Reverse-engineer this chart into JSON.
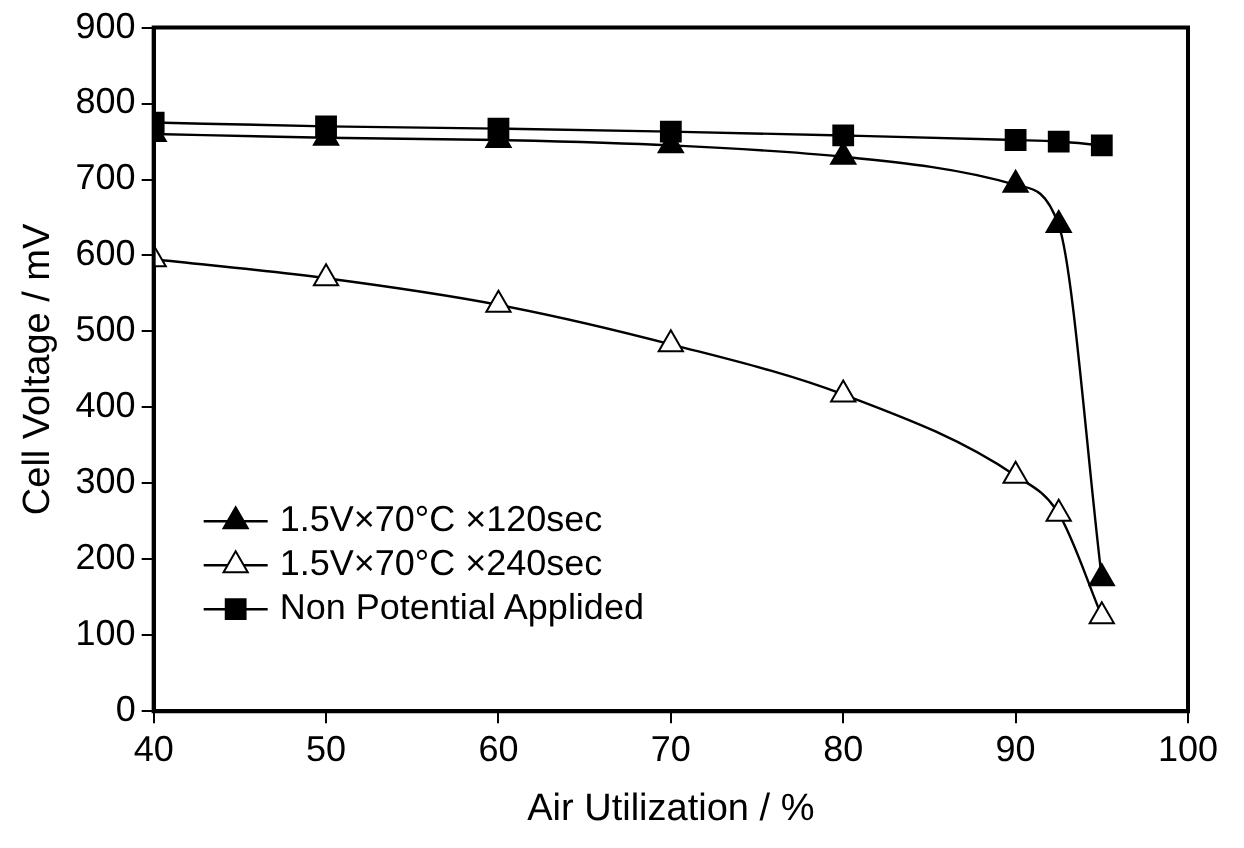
{
  "chart_data": {
    "type": "line",
    "xlabel": "Air Utilization / %",
    "ylabel": "Cell Voltage / mV",
    "x": [
      40,
      50,
      60,
      70,
      80,
      90,
      92.5,
      95
    ],
    "series": [
      {
        "name": "1.5V×70°C ×120sec",
        "color": "#000000",
        "marker": "triangle",
        "values": [
          760,
          755,
          752,
          745,
          730,
          693,
          640,
          175
        ]
      },
      {
        "name": "1.5V×70°C ×240sec",
        "color": "#ffffff",
        "marker": "triangle",
        "values": [
          595,
          570,
          535,
          483,
          417,
          310,
          260,
          125
        ]
      },
      {
        "name": "Non Potential Applided",
        "color": "#000000",
        "marker": "square",
        "values": [
          775,
          770,
          767,
          763,
          758,
          752,
          750,
          745
        ]
      }
    ],
    "xlim": [
      40,
      100
    ],
    "xticks": [
      40,
      50,
      60,
      70,
      80,
      90,
      100
    ],
    "ylim": [
      0,
      900
    ],
    "yticks": [
      0,
      100,
      200,
      300,
      400,
      500,
      600,
      700,
      800,
      900
    ],
    "grid": false,
    "legend": "bottom left",
    "line_style": "solid"
  }
}
